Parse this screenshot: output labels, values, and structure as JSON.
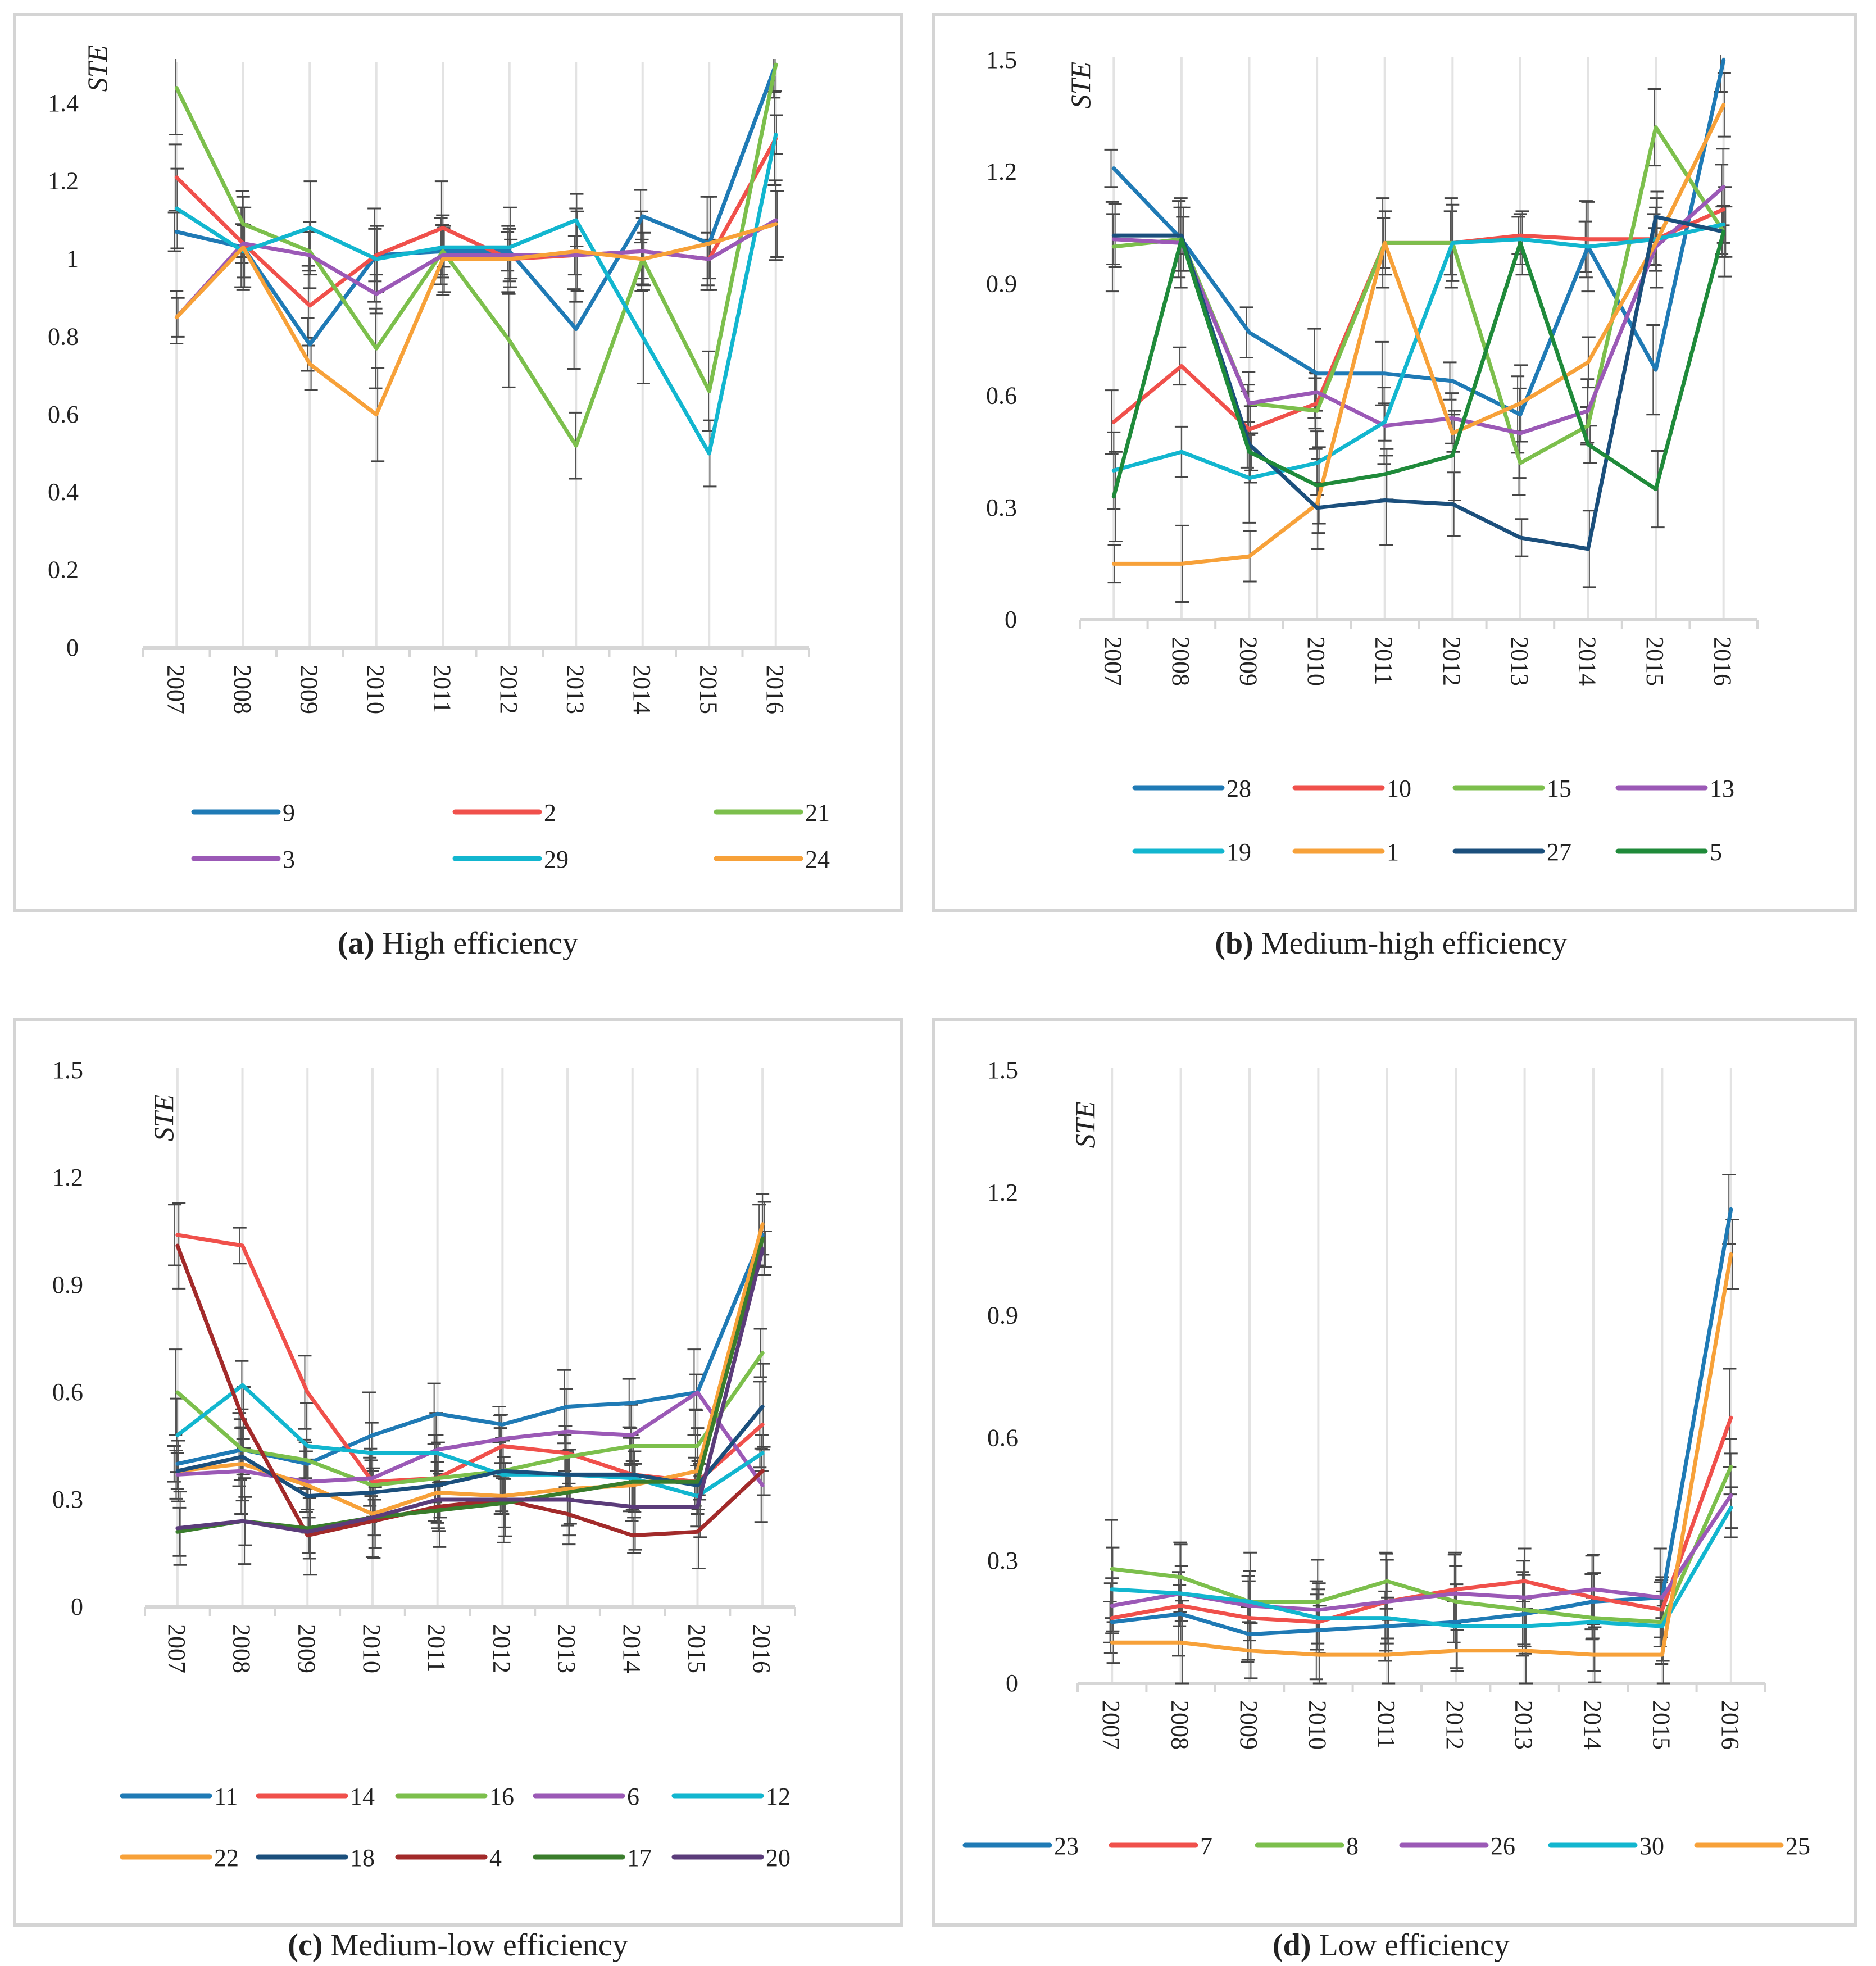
{
  "figure": {
    "panels": [
      {
        "label": "(a)",
        "title": "High efficiency"
      },
      {
        "label": "(b)",
        "title": "Medium-high efficiency"
      },
      {
        "label": "(c)",
        "title": "Medium-low efficiency"
      },
      {
        "label": "(d)",
        "title": "Low efficiency"
      }
    ]
  },
  "chart_data": [
    {
      "type": "line",
      "title": "(a) High efficiency",
      "ylabel": "STE",
      "xlabel": "",
      "categories": [
        "2007",
        "2008",
        "2009",
        "2010",
        "2011",
        "2012",
        "2013",
        "2014",
        "2015",
        "2016"
      ],
      "ylim": [
        0,
        1.5
      ],
      "yticks": [
        0,
        0.2,
        0.4,
        0.6,
        0.8,
        1,
        1.2,
        1.4
      ],
      "ytick_labels": [
        "0",
        "0.2",
        "0.4",
        "0.6",
        "0.8",
        "1",
        "1.2",
        "1.4"
      ],
      "error_bars": "y error bars on each point",
      "series": [
        {
          "name": "9",
          "color": "#1f7ab5",
          "values": [
            1.07,
            1.03,
            0.78,
            1.01,
            1.02,
            1.02,
            0.82,
            1.11,
            1.04,
            1.5
          ]
        },
        {
          "name": "2",
          "color": "#f0504b",
          "values": [
            1.21,
            1.04,
            0.88,
            1.01,
            1.08,
            1.0,
            1.01,
            1.02,
            1.0,
            1.31
          ]
        },
        {
          "name": "21",
          "color": "#7cbf4c",
          "values": [
            1.44,
            1.09,
            1.02,
            0.77,
            1.02,
            0.79,
            0.52,
            1.0,
            0.66,
            1.5
          ]
        },
        {
          "name": "3",
          "color": "#9b59b6",
          "values": [
            0.85,
            1.04,
            1.01,
            0.91,
            1.01,
            1.01,
            1.01,
            1.02,
            1.0,
            1.1
          ]
        },
        {
          "name": "29",
          "color": "#12b6cf",
          "values": [
            1.13,
            1.02,
            1.08,
            1.0,
            1.03,
            1.03,
            1.1,
            0.8,
            0.5,
            1.32
          ]
        },
        {
          "name": "24",
          "color": "#f7a139",
          "values": [
            0.85,
            1.03,
            0.73,
            0.6,
            1.0,
            1.0,
            1.02,
            1.0,
            1.04,
            1.09
          ]
        }
      ]
    },
    {
      "type": "line",
      "title": "(b) Medium-high efficiency",
      "ylabel": "STE",
      "xlabel": "",
      "categories": [
        "2007",
        "2008",
        "2009",
        "2010",
        "2011",
        "2012",
        "2013",
        "2014",
        "2015",
        "2016"
      ],
      "ylim": [
        0,
        1.5
      ],
      "yticks": [
        0,
        0.3,
        0.6,
        0.9,
        1.2,
        1.5
      ],
      "ytick_labels": [
        "0",
        "0.3",
        "0.6",
        "0.9",
        "1.2",
        "1.5"
      ],
      "error_bars": "y error bars on each point",
      "series": [
        {
          "name": "28",
          "color": "#1f7ab5",
          "values": [
            1.21,
            1.02,
            0.77,
            0.66,
            0.66,
            0.64,
            0.55,
            1.0,
            0.67,
            1.5
          ]
        },
        {
          "name": "10",
          "color": "#f0504b",
          "values": [
            0.53,
            0.68,
            0.51,
            0.58,
            1.01,
            1.01,
            1.03,
            1.02,
            1.02,
            1.1
          ]
        },
        {
          "name": "15",
          "color": "#7cbf4c",
          "values": [
            1.0,
            1.02,
            0.58,
            0.56,
            1.01,
            1.01,
            0.42,
            0.52,
            1.32,
            1.04
          ]
        },
        {
          "name": "13",
          "color": "#9b59b6",
          "values": [
            1.02,
            1.01,
            0.58,
            0.61,
            0.52,
            0.54,
            0.5,
            0.56,
            1.0,
            1.16
          ]
        },
        {
          "name": "19",
          "color": "#12b6cf",
          "values": [
            0.4,
            0.45,
            0.38,
            0.42,
            0.53,
            1.01,
            1.02,
            1.0,
            1.02,
            1.06
          ]
        },
        {
          "name": "1",
          "color": "#f7a139",
          "values": [
            0.15,
            0.15,
            0.17,
            0.31,
            1.01,
            0.5,
            0.58,
            0.69,
            1.01,
            1.38
          ]
        },
        {
          "name": "27",
          "color": "#1b4f7c",
          "values": [
            1.03,
            1.03,
            0.47,
            0.3,
            0.32,
            0.31,
            0.22,
            0.19,
            1.08,
            1.04
          ]
        },
        {
          "name": "5",
          "color": "#1f8a3a",
          "values": [
            0.33,
            1.02,
            0.45,
            0.36,
            0.39,
            0.44,
            1.01,
            0.47,
            0.35,
            1.04
          ]
        }
      ]
    },
    {
      "type": "line",
      "title": "(c) Medium-low efficiency",
      "ylabel": "STE",
      "xlabel": "",
      "categories": [
        "2007",
        "2008",
        "2009",
        "2010",
        "2011",
        "2012",
        "2013",
        "2014",
        "2015",
        "2016"
      ],
      "ylim": [
        0,
        1.5
      ],
      "yticks": [
        0,
        0.3,
        0.6,
        0.9,
        1.2,
        1.5
      ],
      "ytick_labels": [
        "0",
        "0.3",
        "0.6",
        "0.9",
        "1.2",
        "1.5"
      ],
      "error_bars": "y error bars on each point",
      "series": [
        {
          "name": "11",
          "color": "#1f7ab5",
          "values": [
            0.4,
            0.44,
            0.4,
            0.48,
            0.54,
            0.51,
            0.56,
            0.57,
            0.6,
            1.04
          ]
        },
        {
          "name": "14",
          "color": "#f0504b",
          "values": [
            1.04,
            1.01,
            0.6,
            0.35,
            0.36,
            0.45,
            0.43,
            0.37,
            0.35,
            0.51
          ]
        },
        {
          "name": "16",
          "color": "#7cbf4c",
          "values": [
            0.6,
            0.44,
            0.41,
            0.34,
            0.36,
            0.38,
            0.42,
            0.45,
            0.45,
            0.71
          ]
        },
        {
          "name": "6",
          "color": "#9b59b6",
          "values": [
            0.37,
            0.38,
            0.35,
            0.36,
            0.44,
            0.47,
            0.49,
            0.48,
            0.6,
            0.34
          ]
        },
        {
          "name": "12",
          "color": "#12b6cf",
          "values": [
            0.48,
            0.62,
            0.45,
            0.43,
            0.43,
            0.37,
            0.37,
            0.36,
            0.31,
            0.43
          ]
        },
        {
          "name": "22",
          "color": "#f7a139",
          "values": [
            0.38,
            0.4,
            0.34,
            0.26,
            0.32,
            0.31,
            0.33,
            0.34,
            0.38,
            1.07
          ]
        },
        {
          "name": "18",
          "color": "#1b4f7c",
          "values": [
            0.38,
            0.42,
            0.31,
            0.32,
            0.34,
            0.38,
            0.37,
            0.37,
            0.34,
            0.56
          ]
        },
        {
          "name": "4",
          "color": "#a22a2a",
          "values": [
            1.01,
            0.53,
            0.2,
            0.24,
            0.28,
            0.3,
            0.26,
            0.2,
            0.21,
            0.38
          ]
        },
        {
          "name": "17",
          "color": "#3a7d2c",
          "values": [
            0.21,
            0.24,
            0.22,
            0.25,
            0.27,
            0.29,
            0.32,
            0.35,
            0.35,
            1.03
          ]
        },
        {
          "name": "20",
          "color": "#5b3c7a",
          "values": [
            0.22,
            0.24,
            0.21,
            0.25,
            0.3,
            0.3,
            0.3,
            0.28,
            0.28,
            1.0
          ]
        }
      ]
    },
    {
      "type": "line",
      "title": "(d) Low efficiency",
      "ylabel": "STE",
      "xlabel": "",
      "categories": [
        "2007",
        "2008",
        "2009",
        "2010",
        "2011",
        "2012",
        "2013",
        "2014",
        "2015",
        "2016"
      ],
      "ylim": [
        0,
        1.5
      ],
      "yticks": [
        0,
        0.3,
        0.6,
        0.9,
        1.2,
        1.5
      ],
      "ytick_labels": [
        "0",
        "0.3",
        "0.6",
        "0.9",
        "1.2",
        "1.5"
      ],
      "error_bars": "y error bars on each point",
      "series": [
        {
          "name": "23",
          "color": "#1f7ab5",
          "values": [
            0.15,
            0.17,
            0.12,
            0.13,
            0.14,
            0.15,
            0.17,
            0.2,
            0.21,
            1.16
          ]
        },
        {
          "name": "7",
          "color": "#f0504b",
          "values": [
            0.16,
            0.19,
            0.16,
            0.15,
            0.2,
            0.23,
            0.25,
            0.21,
            0.18,
            0.65
          ]
        },
        {
          "name": "8",
          "color": "#7cbf4c",
          "values": [
            0.28,
            0.26,
            0.2,
            0.2,
            0.25,
            0.2,
            0.18,
            0.16,
            0.15,
            0.53
          ]
        },
        {
          "name": "26",
          "color": "#9b59b6",
          "values": [
            0.19,
            0.22,
            0.19,
            0.18,
            0.2,
            0.22,
            0.21,
            0.23,
            0.21,
            0.46
          ]
        },
        {
          "name": "30",
          "color": "#12b6cf",
          "values": [
            0.23,
            0.22,
            0.2,
            0.16,
            0.16,
            0.14,
            0.14,
            0.15,
            0.14,
            0.43
          ]
        },
        {
          "name": "25",
          "color": "#f7a139",
          "values": [
            0.1,
            0.1,
            0.08,
            0.07,
            0.07,
            0.08,
            0.08,
            0.07,
            0.07,
            1.05
          ]
        }
      ]
    }
  ]
}
